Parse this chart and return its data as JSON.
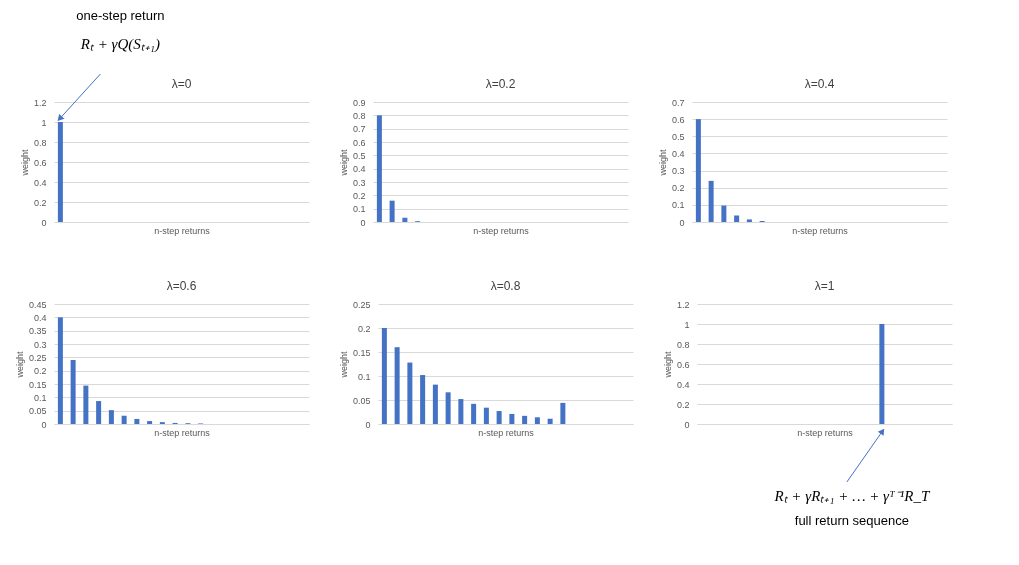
{
  "chart_data": [
    {
      "type": "bar",
      "title": "λ=0",
      "xlabel": "n-step returns",
      "ylabel": "weight",
      "categories": [
        null,
        null,
        null,
        null,
        null,
        null,
        null,
        null,
        null,
        null,
        null,
        null,
        null,
        null,
        null,
        null,
        null,
        null,
        null,
        null
      ],
      "values": [
        1,
        null,
        null,
        null,
        null,
        null,
        null,
        null,
        null,
        null,
        null,
        null,
        null,
        null,
        null,
        null,
        null,
        null,
        null,
        null
      ],
      "color": "#4472c4",
      "ylim": [
        0,
        1.2
      ],
      "yticks": [
        0,
        0.2,
        0.4,
        0.6,
        0.8,
        1,
        1.2
      ],
      "grid": "y",
      "annotations": [
        "one-step return",
        "Rₜ + γQ(Sₜ₊₁)"
      ]
    },
    {
      "type": "bar",
      "title": "λ=0.2",
      "xlabel": "n-step returns",
      "ylabel": "weight",
      "categories": [
        null,
        null,
        null,
        null,
        null,
        null,
        null,
        null,
        null,
        null,
        null,
        null,
        null,
        null,
        null,
        null,
        null,
        null,
        null,
        null
      ],
      "values": [
        0.8,
        0.16,
        0.032,
        0.006,
        0,
        0,
        0,
        0,
        0,
        0,
        null,
        null,
        null,
        null,
        null,
        null,
        null,
        null,
        null,
        null
      ],
      "color": "#4472c4",
      "ylim": [
        0,
        0.9
      ],
      "yticks": [
        0,
        0.1,
        0.2,
        0.3,
        0.4,
        0.5,
        0.6,
        0.7,
        0.8,
        0.9
      ],
      "grid": "y"
    },
    {
      "type": "bar",
      "title": "λ=0.4",
      "xlabel": "n-step returns",
      "ylabel": "weight",
      "categories": [
        null,
        null,
        null,
        null,
        null,
        null,
        null,
        null,
        null,
        null,
        null,
        null,
        null,
        null,
        null,
        null,
        null,
        null,
        null,
        null
      ],
      "values": [
        0.6,
        0.24,
        0.096,
        0.038,
        0.015,
        0.006,
        0,
        0,
        0,
        0,
        0,
        0,
        0,
        0,
        0,
        null,
        null,
        null,
        null,
        null
      ],
      "color": "#4472c4",
      "ylim": [
        0,
        0.7
      ],
      "yticks": [
        0,
        0.1,
        0.2,
        0.3,
        0.4,
        0.5,
        0.6,
        0.7
      ],
      "grid": "y"
    },
    {
      "type": "bar",
      "title": "λ=0.6",
      "xlabel": "n-step returns",
      "ylabel": "weight",
      "categories": [
        null,
        null,
        null,
        null,
        null,
        null,
        null,
        null,
        null,
        null,
        null,
        null,
        null,
        null,
        null,
        null,
        null,
        null,
        null,
        null
      ],
      "values": [
        0.4,
        0.24,
        0.144,
        0.086,
        0.052,
        0.031,
        0.019,
        0.011,
        0.007,
        0.004,
        0.003,
        0.002,
        0,
        0,
        0,
        null,
        null,
        null,
        null,
        null
      ],
      "color": "#4472c4",
      "ylim": [
        0,
        0.45
      ],
      "yticks": [
        0,
        0.05,
        0.1,
        0.15,
        0.2,
        0.25,
        0.3,
        0.35,
        0.4,
        0.45
      ],
      "grid": "y"
    },
    {
      "type": "bar",
      "title": "λ=0.8",
      "xlabel": "n-step returns",
      "ylabel": "weight",
      "categories": [
        null,
        null,
        null,
        null,
        null,
        null,
        null,
        null,
        null,
        null,
        null,
        null,
        null,
        null,
        null,
        null,
        null,
        null,
        null,
        null
      ],
      "values": [
        0.2,
        0.16,
        0.128,
        0.102,
        0.082,
        0.066,
        0.052,
        0.042,
        0.034,
        0.027,
        0.021,
        0.017,
        0.014,
        0.011,
        0.044,
        null,
        null,
        null,
        null,
        null
      ],
      "color": "#4472c4",
      "ylim": [
        0,
        0.25
      ],
      "yticks": [
        0,
        0.05,
        0.1,
        0.15,
        0.2,
        0.25
      ],
      "grid": "y"
    },
    {
      "type": "bar",
      "title": "λ=1",
      "xlabel": "n-step returns",
      "ylabel": "weight",
      "categories": [
        null,
        null,
        null,
        null,
        null,
        null,
        null,
        null,
        null,
        null,
        null,
        null,
        null,
        null,
        null,
        null,
        null,
        null,
        null,
        null
      ],
      "values": [
        null,
        null,
        null,
        null,
        null,
        null,
        null,
        null,
        null,
        null,
        null,
        null,
        null,
        null,
        1,
        null,
        null,
        null,
        null,
        null
      ],
      "color": "#4472c4",
      "ylim": [
        0,
        1.2
      ],
      "yticks": [
        0,
        0.2,
        0.4,
        0.6,
        0.8,
        1,
        1.2
      ],
      "grid": "y",
      "annotations": [
        "Rₜ + γRₜ₊₁ + … + γᵀ⁻¹R_T",
        "full return sequence"
      ]
    }
  ]
}
